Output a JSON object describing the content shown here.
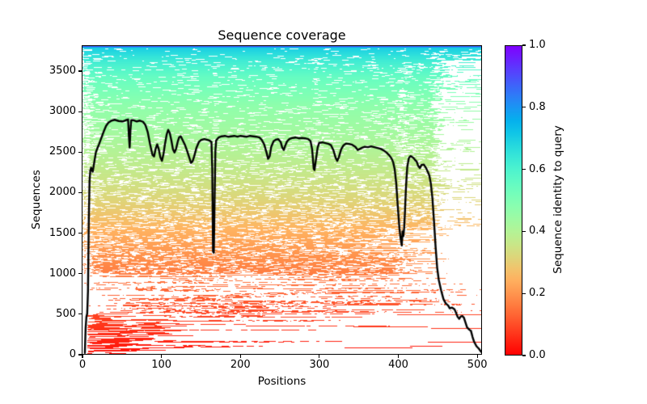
{
  "figure": {
    "background": "#ffffff"
  },
  "chart_data": {
    "type": "heatmap",
    "title": "Sequence coverage",
    "xlabel": "Positions",
    "ylabel": "Sequences",
    "grid": false,
    "xlim": [
      -1,
      506
    ],
    "ylim": [
      0,
      3820
    ],
    "x_tick_values": [
      0,
      100,
      200,
      300,
      400,
      500
    ],
    "y_tick_values": [
      0,
      500,
      1000,
      1500,
      2000,
      2500,
      3000,
      3500
    ],
    "colorbar": {
      "label": "Sequence identity to query",
      "cmap": "rainbow_r (0.0 = red, 1.0 = purple)",
      "range": [
        0,
        1
      ],
      "tick_values": [
        0.0,
        0.2,
        0.4,
        0.6,
        0.8,
        1.0
      ],
      "tick_labels": [
        "0.0",
        "0.2",
        "0.4",
        "0.6",
        "0.8",
        "1.0"
      ]
    },
    "msa": {
      "n_sequences": 3820,
      "n_positions": 508,
      "sorted_by": "sequence identity to query, highest at top",
      "top_identity": 0.88,
      "bottom_identity": 0.02,
      "identity_profile_rowfrac_to_identity": [
        [
          0,
          0.88
        ],
        [
          0.005,
          0.7
        ],
        [
          0.05,
          0.62
        ],
        [
          0.1,
          0.55
        ],
        [
          0.193,
          0.47
        ],
        [
          0.3,
          0.42
        ],
        [
          0.4,
          0.37
        ],
        [
          0.507,
          0.31
        ],
        [
          0.6,
          0.245
        ],
        [
          0.69,
          0.19
        ],
        [
          0.78,
          0.14
        ],
        [
          0.885,
          0.08
        ],
        [
          0.977,
          0.035
        ],
        [
          1,
          0.02
        ]
      ],
      "low_coverage_positions": [
        165,
        293,
        405
      ],
      "right_edge_dropoff_position": 450,
      "dense_low_identity_cluster": {
        "positions": [
          8,
          100
        ],
        "sequence_range": [
          0,
          450
        ]
      }
    },
    "coverage_line": {
      "name": "per-position coverage",
      "color": "#000000",
      "points_pos_count": [
        [
          2,
          0
        ],
        [
          3,
          320
        ],
        [
          4,
          460
        ],
        [
          5,
          500
        ],
        [
          6,
          780
        ],
        [
          7,
          1650
        ],
        [
          8,
          2150
        ],
        [
          9,
          2280
        ],
        [
          10,
          2310
        ],
        [
          12,
          2260
        ],
        [
          14,
          2380
        ],
        [
          16,
          2500
        ],
        [
          18,
          2555
        ],
        [
          20,
          2600
        ],
        [
          23,
          2680
        ],
        [
          26,
          2760
        ],
        [
          29,
          2830
        ],
        [
          32,
          2870
        ],
        [
          36,
          2895
        ],
        [
          40,
          2905
        ],
        [
          45,
          2890
        ],
        [
          50,
          2885
        ],
        [
          54,
          2900
        ],
        [
          57,
          2910
        ],
        [
          58,
          2700
        ],
        [
          59,
          2560
        ],
        [
          60,
          2780
        ],
        [
          61,
          2900
        ],
        [
          64,
          2900
        ],
        [
          68,
          2885
        ],
        [
          72,
          2895
        ],
        [
          76,
          2880
        ],
        [
          79,
          2840
        ],
        [
          82,
          2750
        ],
        [
          85,
          2600
        ],
        [
          88,
          2470
        ],
        [
          90,
          2450
        ],
        [
          92,
          2545
        ],
        [
          94,
          2600
        ],
        [
          96,
          2540
        ],
        [
          98,
          2440
        ],
        [
          100,
          2395
        ],
        [
          102,
          2480
        ],
        [
          104,
          2610
        ],
        [
          106,
          2720
        ],
        [
          108,
          2780
        ],
        [
          110,
          2740
        ],
        [
          112,
          2650
        ],
        [
          114,
          2540
        ],
        [
          116,
          2500
        ],
        [
          118,
          2545
        ],
        [
          120,
          2630
        ],
        [
          122,
          2690
        ],
        [
          124,
          2700
        ],
        [
          126,
          2660
        ],
        [
          129,
          2600
        ],
        [
          132,
          2520
        ],
        [
          135,
          2430
        ],
        [
          137,
          2370
        ],
        [
          139,
          2390
        ],
        [
          141,
          2450
        ],
        [
          144,
          2560
        ],
        [
          147,
          2630
        ],
        [
          150,
          2655
        ],
        [
          154,
          2665
        ],
        [
          158,
          2655
        ],
        [
          161,
          2645
        ],
        [
          163,
          2630
        ],
        [
          164,
          2300
        ],
        [
          165,
          1270
        ],
        [
          166,
          1255
        ],
        [
          167,
          1900
        ],
        [
          168,
          2520
        ],
        [
          169,
          2650
        ],
        [
          172,
          2685
        ],
        [
          176,
          2700
        ],
        [
          180,
          2705
        ],
        [
          184,
          2695
        ],
        [
          188,
          2700
        ],
        [
          192,
          2705
        ],
        [
          196,
          2695
        ],
        [
          200,
          2705
        ],
        [
          204,
          2700
        ],
        [
          208,
          2695
        ],
        [
          212,
          2705
        ],
        [
          216,
          2700
        ],
        [
          220,
          2695
        ],
        [
          224,
          2685
        ],
        [
          227,
          2655
        ],
        [
          230,
          2600
        ],
        [
          233,
          2500
        ],
        [
          235,
          2420
        ],
        [
          237,
          2450
        ],
        [
          239,
          2570
        ],
        [
          242,
          2640
        ],
        [
          245,
          2660
        ],
        [
          248,
          2665
        ],
        [
          251,
          2630
        ],
        [
          253,
          2560
        ],
        [
          255,
          2530
        ],
        [
          257,
          2590
        ],
        [
          259,
          2635
        ],
        [
          262,
          2665
        ],
        [
          266,
          2680
        ],
        [
          270,
          2685
        ],
        [
          274,
          2675
        ],
        [
          278,
          2680
        ],
        [
          282,
          2675
        ],
        [
          286,
          2665
        ],
        [
          289,
          2640
        ],
        [
          291,
          2540
        ],
        [
          293,
          2300
        ],
        [
          294,
          2280
        ],
        [
          296,
          2420
        ],
        [
          298,
          2560
        ],
        [
          300,
          2620
        ],
        [
          304,
          2625
        ],
        [
          308,
          2615
        ],
        [
          312,
          2605
        ],
        [
          315,
          2590
        ],
        [
          318,
          2530
        ],
        [
          321,
          2430
        ],
        [
          323,
          2395
        ],
        [
          325,
          2440
        ],
        [
          328,
          2540
        ],
        [
          331,
          2590
        ],
        [
          334,
          2610
        ],
        [
          338,
          2605
        ],
        [
          342,
          2595
        ],
        [
          346,
          2570
        ],
        [
          349,
          2530
        ],
        [
          352,
          2545
        ],
        [
          355,
          2560
        ],
        [
          358,
          2570
        ],
        [
          362,
          2565
        ],
        [
          366,
          2575
        ],
        [
          370,
          2565
        ],
        [
          374,
          2555
        ],
        [
          378,
          2545
        ],
        [
          382,
          2525
        ],
        [
          386,
          2495
        ],
        [
          389,
          2465
        ],
        [
          392,
          2425
        ],
        [
          394,
          2380
        ],
        [
          396,
          2290
        ],
        [
          398,
          2110
        ],
        [
          400,
          1820
        ],
        [
          402,
          1560
        ],
        [
          403,
          1470
        ],
        [
          404,
          1400
        ],
        [
          405,
          1345
        ],
        [
          406,
          1520
        ],
        [
          407,
          1460
        ],
        [
          408,
          1560
        ],
        [
          409,
          1750
        ],
        [
          410,
          1990
        ],
        [
          411,
          2180
        ],
        [
          412,
          2320
        ],
        [
          414,
          2430
        ],
        [
          416,
          2455
        ],
        [
          418,
          2445
        ],
        [
          420,
          2430
        ],
        [
          422,
          2405
        ],
        [
          424,
          2385
        ],
        [
          426,
          2330
        ],
        [
          428,
          2305
        ],
        [
          430,
          2345
        ],
        [
          433,
          2350
        ],
        [
          436,
          2305
        ],
        [
          438,
          2260
        ],
        [
          440,
          2215
        ],
        [
          442,
          2110
        ],
        [
          444,
          1930
        ],
        [
          446,
          1640
        ],
        [
          448,
          1330
        ],
        [
          450,
          1070
        ],
        [
          452,
          920
        ],
        [
          455,
          790
        ],
        [
          458,
          680
        ],
        [
          461,
          625
        ],
        [
          464,
          600
        ],
        [
          466,
          565
        ],
        [
          469,
          575
        ],
        [
          472,
          555
        ],
        [
          474,
          510
        ],
        [
          476,
          460
        ],
        [
          478,
          435
        ],
        [
          480,
          465
        ],
        [
          482,
          470
        ],
        [
          484,
          450
        ],
        [
          486,
          390
        ],
        [
          488,
          330
        ],
        [
          491,
          300
        ],
        [
          493,
          285
        ],
        [
          495,
          210
        ],
        [
          497,
          150
        ],
        [
          500,
          95
        ],
        [
          503,
          65
        ],
        [
          506,
          25
        ],
        [
          508,
          0
        ]
      ]
    }
  }
}
